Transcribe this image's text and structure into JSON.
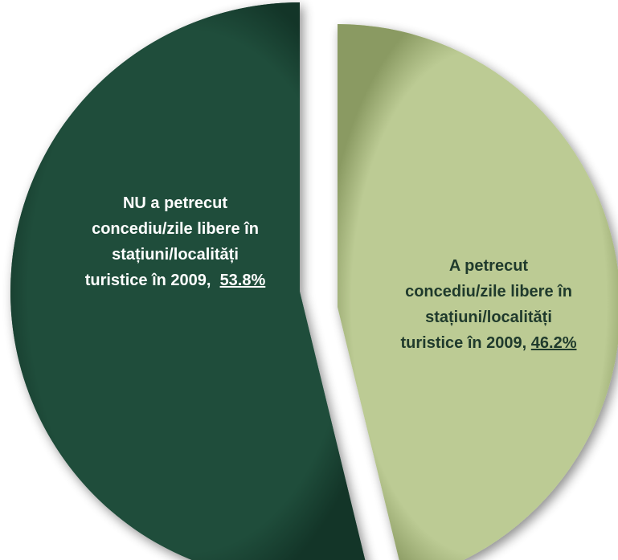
{
  "chart_data": {
    "type": "pie",
    "title": "",
    "exploded": true,
    "start_angle_deg": 0,
    "direction": "clockwise",
    "slices": [
      {
        "key": "a-petrecut",
        "label_lines": [
          "A petrecut",
          "concediu/zile libere în",
          "stațiuni/localități",
          "turistice în 2009, "
        ],
        "value_text": "46.2%",
        "value": 46.2,
        "color": "#bccb94",
        "edge_color": "#8a9a62",
        "text_color": "#1f3a2c"
      },
      {
        "key": "nu-a-petrecut",
        "label_lines": [
          "NU a petrecut",
          "concediu/zile libere în",
          "stațiuni/localități",
          "turistice în 2009,  "
        ],
        "value_text": "53.8%",
        "value": 53.8,
        "color": "#1f4d3b",
        "edge_color": "#133528",
        "text_color": "#ffffff"
      }
    ]
  }
}
